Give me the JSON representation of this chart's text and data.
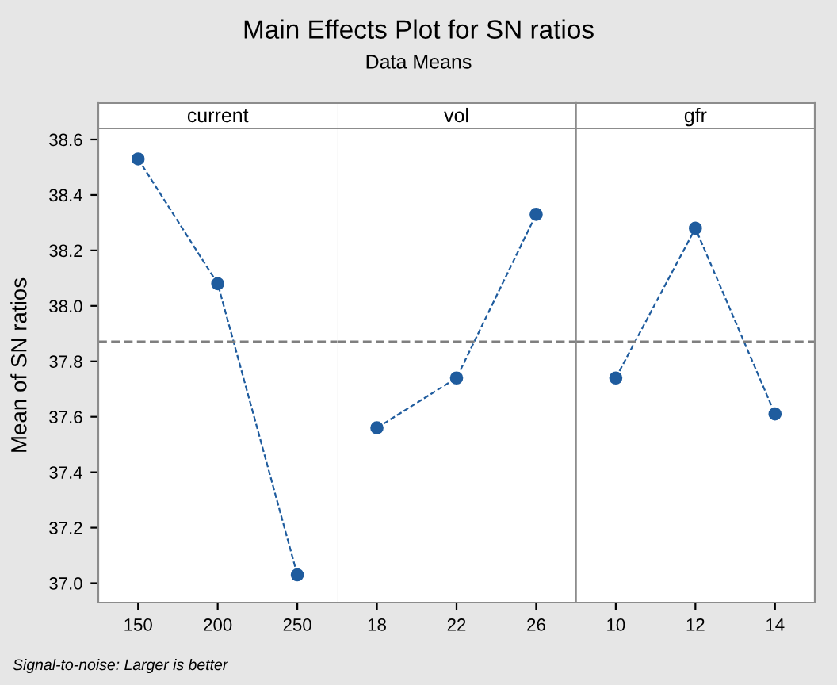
{
  "chart_data": [
    {
      "type": "line",
      "ylabel": "Mean of SN ratios",
      "annotations": [
        "Signal-to-noise: Larger is better"
      ],
      "legend_title": "current",
      "categories": [
        "150",
        "200",
        "250"
      ],
      "series": [
        {
          "color": "#1f5c9e",
          "values": [
            38.53,
            38.08,
            37.03
          ]
        }
      ],
      "ylim": [
        36.93,
        38.64
      ],
      "yticks": [
        {
          "value": 37,
          "label": "37.0"
        },
        37.2,
        37.4,
        37.6,
        37.8,
        {
          "value": 38,
          "label": "38.0"
        },
        38.2,
        38.4,
        38.6
      ],
      "marker": "circle",
      "line_style": "dashed",
      "grid": false,
      "legend": false,
      "ref_lines": [
        {
          "axis": "y",
          "value": 37.87,
          "color": "#7f7f7f",
          "line_style": "dashed"
        }
      ]
    },
    {
      "type": "line",
      "title": "Main Effects Plot for SN ratios",
      "subtitle": "Data Means",
      "legend_title": "vol",
      "categories": [
        "18",
        "22",
        "26"
      ],
      "series": [
        {
          "color": "#1f5c9e",
          "values": [
            37.56,
            37.74,
            38.33
          ]
        }
      ],
      "ylim": [
        36.93,
        38.64
      ],
      "tick_labels": "x",
      "marker": "circle",
      "line_style": "dashed",
      "grid": false,
      "legend": false,
      "ref_lines": [
        {
          "axis": "y",
          "value": 37.87,
          "color": "#7f7f7f",
          "line_style": "dashed"
        }
      ]
    },
    {
      "type": "line",
      "legend_title": "gfr",
      "categories": [
        "10",
        "12",
        "14"
      ],
      "series": [
        {
          "color": "#1f5c9e",
          "values": [
            37.74,
            38.28,
            37.61
          ]
        }
      ],
      "ylim": [
        36.93,
        38.64
      ],
      "tick_labels": "x",
      "marker": "circle",
      "line_style": "dashed",
      "grid": false,
      "legend": false,
      "ref_lines": [
        {
          "axis": "y",
          "value": 37.87,
          "color": "#7f7f7f",
          "line_style": "dashed"
        }
      ]
    }
  ]
}
